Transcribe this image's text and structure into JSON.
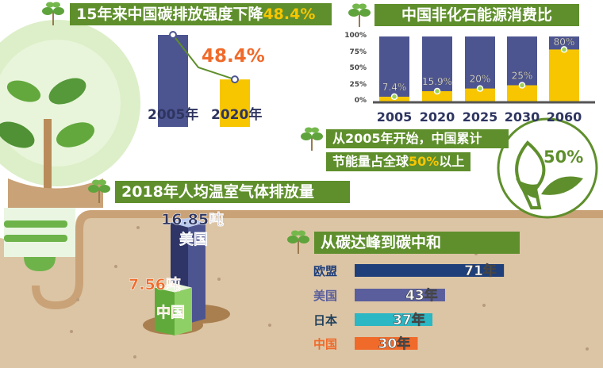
{
  "colors": {
    "banner_green": "#5f8f2c",
    "highlight_yellow": "#f7c600",
    "navy": "#4d5591",
    "orange": "#f06a2a",
    "soil": "#dcc5a5"
  },
  "panel_intensity": {
    "title_prefix": "15年来中国碳排放强度下降",
    "title_highlight": "48.4%",
    "drop_label": "48.4%"
  },
  "panel_nonfossil": {
    "title": "中国非化石能源消费比"
  },
  "callout": {
    "line1": "从2005年开始，中国累计",
    "line2_prefix": "节能量占全球",
    "line2_highlight": "50%",
    "line2_suffix": "以上",
    "badge": "50%"
  },
  "panel_per_capita": {
    "title": "2018年人均温室气体排放量"
  },
  "panel_peak": {
    "title": "从碳达峰到碳中和"
  },
  "chart_data": [
    {
      "type": "bar",
      "title": "15年来中国碳排放强度下降48.4%",
      "categories": [
        "2005年",
        "2020年"
      ],
      "values": [
        100,
        51.6
      ],
      "colors": [
        "#4d5591",
        "#f7c600"
      ],
      "annotation": "48.4%"
    },
    {
      "type": "bar",
      "stacked": true,
      "title": "中国非化石能源消费比",
      "categories": [
        "2005",
        "2020",
        "2025",
        "2030",
        "2060"
      ],
      "values": [
        7.4,
        15.9,
        20,
        25,
        80
      ],
      "data_labels": [
        "7.4%",
        "15.9%",
        "20%",
        "25%",
        "80%"
      ],
      "ylim": [
        0,
        100
      ],
      "yticks": [
        "0%",
        "25%",
        "50%",
        "75%",
        "100%"
      ],
      "colors": {
        "non_fossil": "#f7c600",
        "remainder": "#4d5591"
      }
    },
    {
      "type": "bar",
      "title": "2018年人均温室气体排放量",
      "categories": [
        "美国",
        "中国"
      ],
      "values": [
        16.85,
        7.56
      ],
      "data_labels": [
        "16.85吨",
        "7.56吨"
      ],
      "colors": [
        "#4d5591",
        "#7cc04e"
      ]
    },
    {
      "type": "bar",
      "orientation": "horizontal",
      "title": "从碳达峰到碳中和",
      "categories": [
        "欧盟",
        "美国",
        "日本",
        "中国"
      ],
      "values": [
        71,
        43,
        37,
        30
      ],
      "data_labels": [
        "71年",
        "43年",
        "37年",
        "30年"
      ],
      "colors": [
        "#1f3f7a",
        "#5a5e9c",
        "#2bb7c3",
        "#f06a2a"
      ],
      "label_colors": [
        "#1f3f7a",
        "#5a5e9c",
        "#1f3f5a",
        "#f06a2a"
      ]
    }
  ]
}
